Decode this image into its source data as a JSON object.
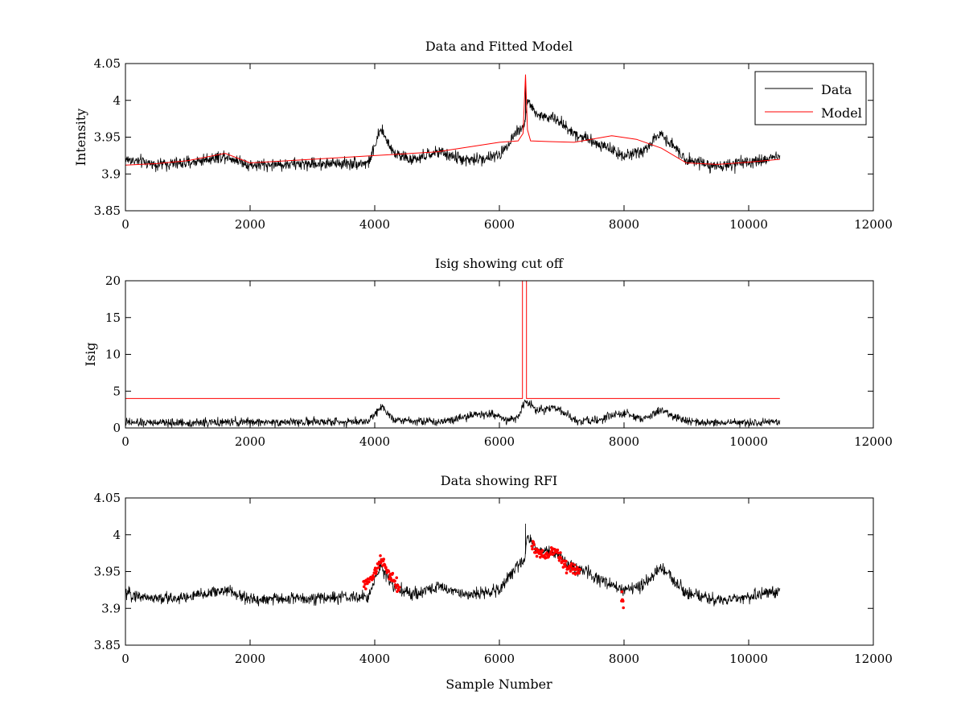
{
  "figure": {
    "background": "#ffffff"
  },
  "chart_data": [
    {
      "type": "line",
      "title": "Data and Fitted Model",
      "xlabel": "",
      "ylabel": "Intensity",
      "xlim": [
        0,
        12000
      ],
      "ylim": [
        3.85,
        4.05
      ],
      "xticks": [
        0,
        2000,
        4000,
        6000,
        8000,
        10000,
        12000
      ],
      "yticks": [
        3.85,
        3.9,
        3.95,
        4,
        4.05
      ],
      "ytick_labels": [
        "3.85",
        "3.9",
        "3.95",
        "4",
        "4.05"
      ],
      "legend": {
        "position": "top-right",
        "entries": [
          "Data",
          "Model"
        ]
      },
      "series": [
        {
          "name": "Data",
          "color": "#000000",
          "style": "noisy-line",
          "noise": 0.008,
          "x": [
            0,
            500,
            1000,
            1600,
            2000,
            3000,
            3900,
            4100,
            4300,
            4600,
            5000,
            5500,
            6000,
            6300,
            6400,
            6450,
            6600,
            6900,
            7200,
            7500,
            8000,
            8300,
            8600,
            9000,
            9500,
            10000,
            10500
          ],
          "y": [
            3.92,
            3.913,
            3.915,
            3.925,
            3.912,
            3.914,
            3.915,
            3.96,
            3.93,
            3.918,
            3.93,
            3.918,
            3.925,
            3.96,
            3.965,
            4.0,
            3.98,
            3.975,
            3.955,
            3.945,
            3.925,
            3.93,
            3.955,
            3.92,
            3.91,
            3.915,
            3.925
          ],
          "spikes": [
            {
              "x": 6420,
              "y": 4.03
            }
          ]
        },
        {
          "name": "Model",
          "color": "#ff0000",
          "style": "line",
          "x": [
            0,
            500,
            1000,
            1600,
            2000,
            3000,
            4000,
            5000,
            6000,
            6300,
            6380,
            6420,
            6450,
            6500,
            6800,
            7200,
            7800,
            8200,
            8600,
            9000,
            9500,
            10000,
            10500
          ],
          "y": [
            3.912,
            3.914,
            3.918,
            3.928,
            3.915,
            3.92,
            3.925,
            3.93,
            3.943,
            3.945,
            3.955,
            4.035,
            3.96,
            3.945,
            3.944,
            3.943,
            3.952,
            3.947,
            3.935,
            3.915,
            3.913,
            3.916,
            3.92
          ]
        }
      ]
    },
    {
      "type": "line",
      "title": "Isig showing cut off",
      "xlabel": "",
      "ylabel": "Isig",
      "xlim": [
        0,
        12000
      ],
      "ylim": [
        0,
        20
      ],
      "xticks": [
        0,
        2000,
        4000,
        6000,
        8000,
        10000,
        12000
      ],
      "yticks": [
        0,
        5,
        10,
        15,
        20
      ],
      "ytick_labels": [
        "0",
        "5",
        "10",
        "15",
        "20"
      ],
      "series": [
        {
          "name": "Isig",
          "color": "#000000",
          "style": "noisy-line",
          "noise": 0.55,
          "floor": 0,
          "x": [
            0,
            1000,
            2000,
            3000,
            3900,
            4100,
            4300,
            5000,
            5600,
            5900,
            6100,
            6300,
            6420,
            6600,
            6900,
            7200,
            7500,
            8000,
            8300,
            8600,
            9000,
            9500,
            10000,
            10500
          ],
          "y": [
            0.7,
            0.7,
            0.8,
            0.8,
            0.9,
            3.0,
            1.2,
            0.8,
            1.8,
            1.9,
            1.0,
            1.5,
            3.6,
            2.5,
            2.8,
            1.0,
            0.9,
            2.0,
            1.2,
            2.4,
            0.8,
            0.7,
            0.7,
            0.7
          ]
        },
        {
          "name": "Cutoff",
          "color": "#ff0000",
          "style": "line",
          "x": [
            0,
            6370,
            6370,
            6435,
            6435,
            10500
          ],
          "y": [
            4,
            4,
            20,
            20,
            4,
            4
          ]
        }
      ]
    },
    {
      "type": "line",
      "title": "Data showing RFI",
      "xlabel": "Sample Number",
      "ylabel": "",
      "xlim": [
        0,
        12000
      ],
      "ylim": [
        3.85,
        4.05
      ],
      "xticks": [
        0,
        2000,
        4000,
        6000,
        8000,
        10000,
        12000
      ],
      "yticks": [
        3.85,
        3.9,
        3.95,
        4,
        4.05
      ],
      "ytick_labels": [
        "3.85",
        "3.9",
        "3.95",
        "4",
        "4.05"
      ],
      "series": [
        {
          "name": "Data",
          "color": "#000000",
          "style": "noisy-line",
          "noise": 0.008,
          "x": [
            0,
            500,
            1000,
            1600,
            2000,
            3000,
            3900,
            4100,
            4300,
            4600,
            5000,
            5500,
            6000,
            6300,
            6400,
            6450,
            6600,
            6900,
            7200,
            7500,
            8000,
            8300,
            8600,
            9000,
            9500,
            10000,
            10500
          ],
          "y": [
            3.92,
            3.913,
            3.915,
            3.925,
            3.912,
            3.914,
            3.915,
            3.96,
            3.93,
            3.918,
            3.93,
            3.918,
            3.925,
            3.96,
            3.965,
            4.0,
            3.98,
            3.975,
            3.955,
            3.945,
            3.925,
            3.93,
            3.955,
            3.92,
            3.91,
            3.915,
            3.925
          ],
          "spikes": [
            {
              "x": 6420,
              "y": 4.015
            }
          ]
        },
        {
          "name": "RFI",
          "color": "#ff0000",
          "style": "markers",
          "ranges": [
            {
              "x": [
                3820,
                3950,
                4100,
                4250,
                4400
              ],
              "y": [
                3.93,
                3.94,
                3.965,
                3.945,
                3.925
              ],
              "noise": 0.008
            },
            {
              "x": [
                6520,
                6700,
                6900,
                7100,
                7300
              ],
              "y": [
                3.985,
                3.97,
                3.978,
                3.955,
                3.95
              ],
              "noise": 0.008
            },
            {
              "x": [
                7960,
                7990
              ],
              "y": [
                3.92,
                3.91
              ],
              "noise": 0.01
            }
          ]
        }
      ]
    }
  ]
}
